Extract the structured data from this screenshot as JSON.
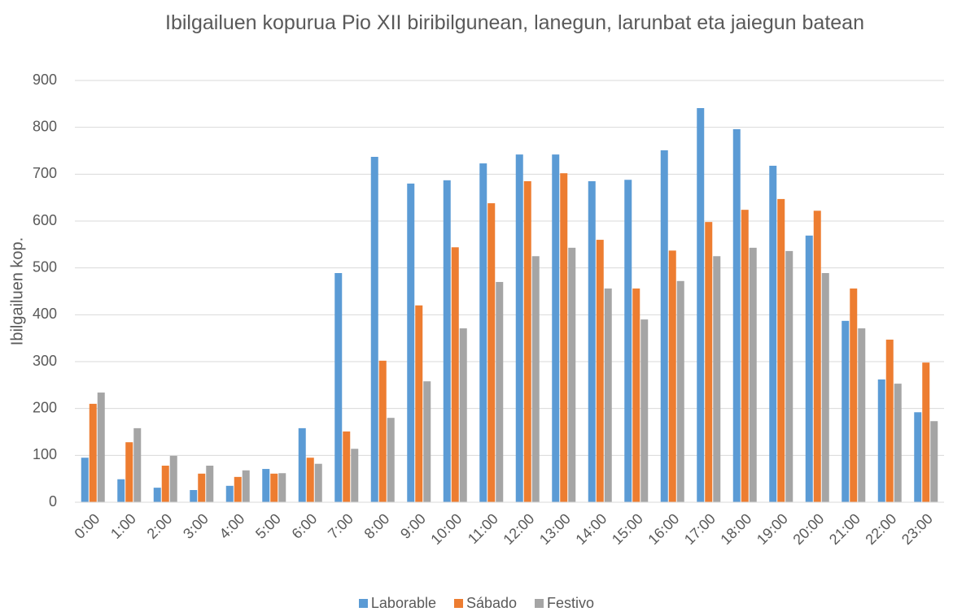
{
  "chart_data": {
    "type": "bar",
    "title": "Ibilgailuen kopurua Pio XII biribilgunean, lanegun, larunbat eta jaiegun batean",
    "y_label": "Ibilgailuen kop.",
    "categories": [
      "0:00",
      "1:00",
      "2:00",
      "3:00",
      "4:00",
      "5:00",
      "6:00",
      "7:00",
      "8:00",
      "9:00",
      "10:00",
      "11:00",
      "12:00",
      "13:00",
      "14:00",
      "15:00",
      "16:00",
      "17:00",
      "18:00",
      "19:00",
      "20:00",
      "21:00",
      "22:00",
      "23:00"
    ],
    "series": [
      {
        "name": "Laborable",
        "color": "#5b9bd5",
        "values": [
          95,
          49,
          31,
          26,
          35,
          71,
          158,
          489,
          737,
          680,
          687,
          723,
          742,
          742,
          685,
          688,
          751,
          841,
          796,
          718,
          569,
          387,
          262,
          192
        ]
      },
      {
        "name": "Sábado",
        "color": "#ed7d31",
        "values": [
          210,
          128,
          78,
          61,
          54,
          61,
          95,
          151,
          302,
          420,
          544,
          638,
          685,
          702,
          560,
          456,
          537,
          598,
          624,
          647,
          622,
          456,
          347,
          298
        ]
      },
      {
        "name": "Festivo",
        "color": "#a5a5a5",
        "values": [
          234,
          158,
          99,
          78,
          68,
          62,
          82,
          114,
          180,
          258,
          371,
          470,
          525,
          543,
          456,
          390,
          472,
          525,
          543,
          536,
          489,
          371,
          253,
          173
        ]
      }
    ],
    "ylim": [
      0,
      900
    ],
    "yticks": [
      0,
      100,
      200,
      300,
      400,
      500,
      600,
      700,
      800,
      900
    ],
    "grid": true,
    "legend": "bottom"
  }
}
